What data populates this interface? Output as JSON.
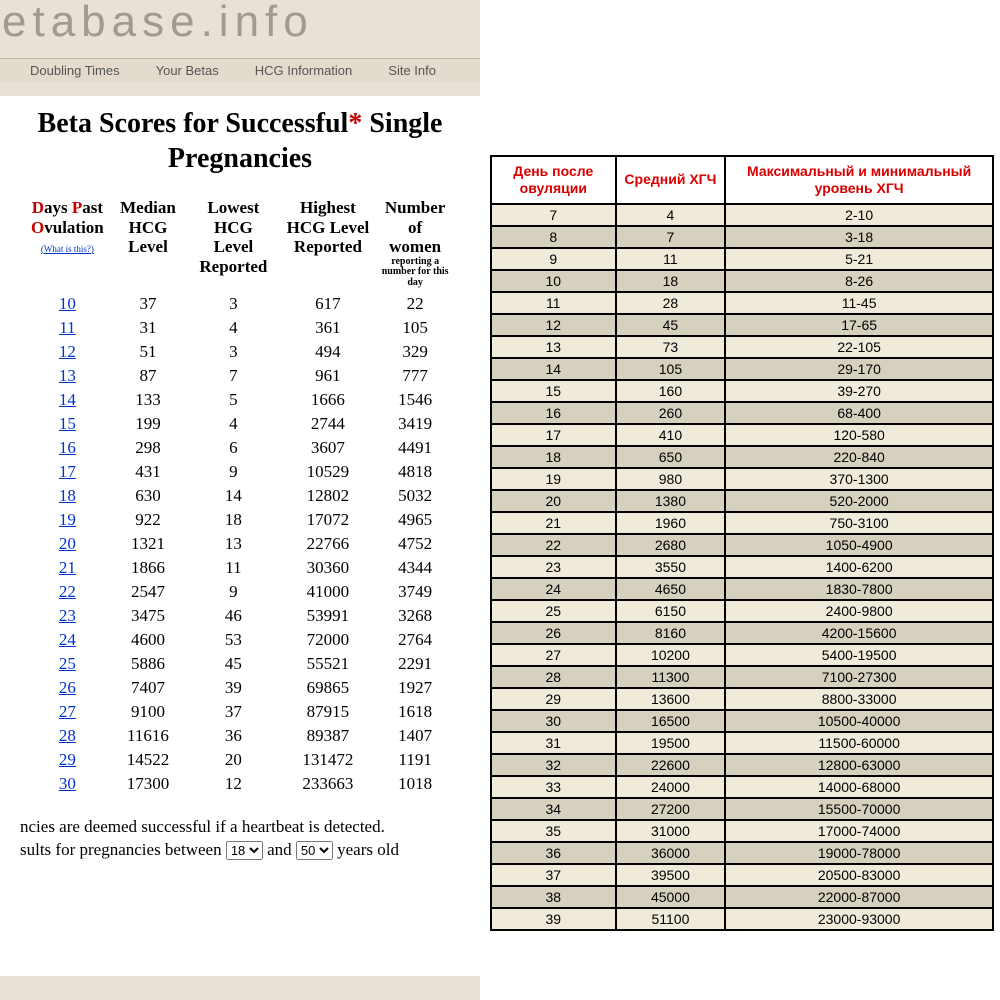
{
  "left": {
    "logo": "etabase.info",
    "nav": [
      "Doubling Times",
      "Your Betas",
      "HCG Information",
      "Site Info"
    ],
    "title_pre": "Beta Scores for Successful",
    "title_star": "*",
    "title_post": " Single Pregnancies",
    "headers": {
      "dpo_line1": "Days Past",
      "dpo_line2": "Ovulation",
      "dpo_link_pre": "(",
      "dpo_link": "What is this?",
      "dpo_link_post": ")",
      "median": "Median HCG Level",
      "lowest": "Lowest HCG Level Reported",
      "highest": "Highest HCG Level Reported",
      "number_main": "Number of women",
      "number_small": "reporting a number for this day"
    },
    "rows": [
      {
        "day": "10",
        "median": "37",
        "low": "3",
        "high": "617",
        "n": "22"
      },
      {
        "day": "11",
        "median": "31",
        "low": "4",
        "high": "361",
        "n": "105"
      },
      {
        "day": "12",
        "median": "51",
        "low": "3",
        "high": "494",
        "n": "329"
      },
      {
        "day": "13",
        "median": "87",
        "low": "7",
        "high": "961",
        "n": "777"
      },
      {
        "day": "14",
        "median": "133",
        "low": "5",
        "high": "1666",
        "n": "1546"
      },
      {
        "day": "15",
        "median": "199",
        "low": "4",
        "high": "2744",
        "n": "3419"
      },
      {
        "day": "16",
        "median": "298",
        "low": "6",
        "high": "3607",
        "n": "4491"
      },
      {
        "day": "17",
        "median": "431",
        "low": "9",
        "high": "10529",
        "n": "4818"
      },
      {
        "day": "18",
        "median": "630",
        "low": "14",
        "high": "12802",
        "n": "5032"
      },
      {
        "day": "19",
        "median": "922",
        "low": "18",
        "high": "17072",
        "n": "4965"
      },
      {
        "day": "20",
        "median": "1321",
        "low": "13",
        "high": "22766",
        "n": "4752"
      },
      {
        "day": "21",
        "median": "1866",
        "low": "11",
        "high": "30360",
        "n": "4344"
      },
      {
        "day": "22",
        "median": "2547",
        "low": "9",
        "high": "41000",
        "n": "3749"
      },
      {
        "day": "23",
        "median": "3475",
        "low": "46",
        "high": "53991",
        "n": "3268"
      },
      {
        "day": "24",
        "median": "4600",
        "low": "53",
        "high": "72000",
        "n": "2764"
      },
      {
        "day": "25",
        "median": "5886",
        "low": "45",
        "high": "55521",
        "n": "2291"
      },
      {
        "day": "26",
        "median": "7407",
        "low": "39",
        "high": "69865",
        "n": "1927"
      },
      {
        "day": "27",
        "median": "9100",
        "low": "37",
        "high": "87915",
        "n": "1618"
      },
      {
        "day": "28",
        "median": "11616",
        "low": "36",
        "high": "89387",
        "n": "1407"
      },
      {
        "day": "29",
        "median": "14522",
        "low": "20",
        "high": "131472",
        "n": "1191"
      },
      {
        "day": "30",
        "median": "17300",
        "low": "12",
        "high": "233663",
        "n": "1018"
      }
    ],
    "footnote_line1": "ncies are deemed successful if a heartbeat is detected.",
    "footnote_line2_pre": "sults for pregnancies between ",
    "footnote_line2_mid": " and ",
    "footnote_line2_post": " years old ",
    "age_from": "18",
    "age_to": "50"
  },
  "right": {
    "headers": {
      "day": "День после овуляции",
      "avg": "Средний ХГЧ",
      "range": "Максимальный и минимальный уровень ХГЧ"
    },
    "col_widths": [
      "125px",
      "110px",
      "269px"
    ],
    "rows": [
      {
        "day": "7",
        "avg": "4",
        "range": "2-10"
      },
      {
        "day": "8",
        "avg": "7",
        "range": "3-18"
      },
      {
        "day": "9",
        "avg": "11",
        "range": "5-21"
      },
      {
        "day": "10",
        "avg": "18",
        "range": "8-26"
      },
      {
        "day": "11",
        "avg": "28",
        "range": "11-45"
      },
      {
        "day": "12",
        "avg": "45",
        "range": "17-65"
      },
      {
        "day": "13",
        "avg": "73",
        "range": "22-105"
      },
      {
        "day": "14",
        "avg": "105",
        "range": "29-170"
      },
      {
        "day": "15",
        "avg": "160",
        "range": "39-270"
      },
      {
        "day": "16",
        "avg": "260",
        "range": "68-400"
      },
      {
        "day": "17",
        "avg": "410",
        "range": "120-580"
      },
      {
        "day": "18",
        "avg": "650",
        "range": "220-840"
      },
      {
        "day": "19",
        "avg": "980",
        "range": "370-1300"
      },
      {
        "day": "20",
        "avg": "1380",
        "range": "520-2000"
      },
      {
        "day": "21",
        "avg": "1960",
        "range": "750-3100"
      },
      {
        "day": "22",
        "avg": "2680",
        "range": "1050-4900"
      },
      {
        "day": "23",
        "avg": "3550",
        "range": "1400-6200"
      },
      {
        "day": "24",
        "avg": "4650",
        "range": "1830-7800"
      },
      {
        "day": "25",
        "avg": "6150",
        "range": "2400-9800"
      },
      {
        "day": "26",
        "avg": "8160",
        "range": "4200-15600"
      },
      {
        "day": "27",
        "avg": "10200",
        "range": "5400-19500"
      },
      {
        "day": "28",
        "avg": "11300",
        "range": "7100-27300"
      },
      {
        "day": "29",
        "avg": "13600",
        "range": "8800-33000"
      },
      {
        "day": "30",
        "avg": "16500",
        "range": "10500-40000"
      },
      {
        "day": "31",
        "avg": "19500",
        "range": "11500-60000"
      },
      {
        "day": "32",
        "avg": "22600",
        "range": "12800-63000"
      },
      {
        "day": "33",
        "avg": "24000",
        "range": "14000-68000"
      },
      {
        "day": "34",
        "avg": "27200",
        "range": "15500-70000"
      },
      {
        "day": "35",
        "avg": "31000",
        "range": "17000-74000"
      },
      {
        "day": "36",
        "avg": "36000",
        "range": "19000-78000"
      },
      {
        "day": "37",
        "avg": "39500",
        "range": "20500-83000"
      },
      {
        "day": "38",
        "avg": "45000",
        "range": "22000-87000"
      },
      {
        "day": "39",
        "avg": "51100",
        "range": "23000-93000"
      }
    ]
  },
  "colors": {
    "left_bg": "#e8e2d6",
    "nav_bg": "#e3dcce",
    "accent_red": "#c40000",
    "link_blue": "#0033cc",
    "ru_header_red": "#d80000",
    "ru_row_a": "#efeada",
    "ru_row_b": "#d6d0bf"
  }
}
